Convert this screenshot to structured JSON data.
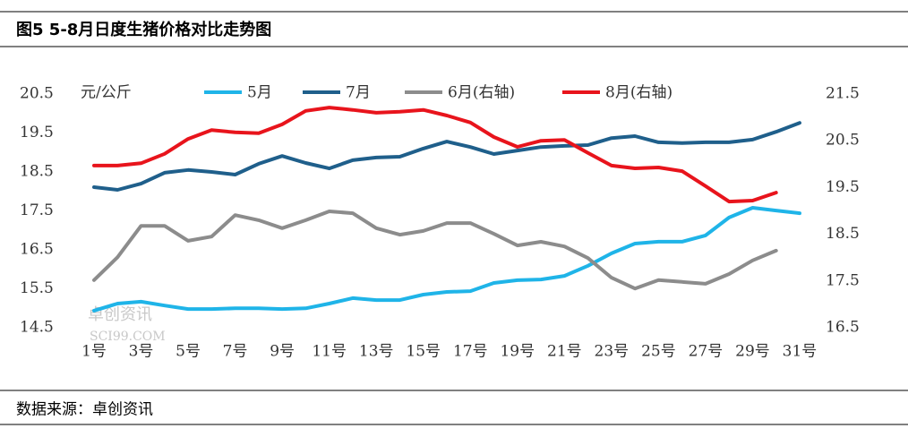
{
  "chart_data": {
    "type": "line",
    "title": "图5 5-8月日度生猪价格对比走势图",
    "y_axis_label": "元/公斤",
    "source": "数据来源：卓创资讯",
    "watermark": "卓创资讯",
    "watermark_sub": "SCI99.COM",
    "categories": [
      "1号",
      null,
      "3号",
      null,
      "5号",
      null,
      "7号",
      null,
      "9号",
      null,
      "11号",
      null,
      "13号",
      null,
      "15号",
      null,
      "17号",
      null,
      "19号",
      null,
      "21号",
      null,
      "23号",
      null,
      "25号",
      null,
      "27号",
      null,
      "29号",
      null,
      "31号"
    ],
    "ylim": [
      14.5,
      20.5
    ],
    "yticks": [
      14.5,
      15.5,
      16.5,
      17.5,
      18.5,
      19.5,
      20.5
    ],
    "y2lim": [
      16.5,
      21.5
    ],
    "y2ticks": [
      16.5,
      17.5,
      18.5,
      19.5,
      20.5,
      21.5
    ],
    "grid": false,
    "series": [
      {
        "name": "5月",
        "color": "#1fb4e8",
        "values": [
          14.94,
          15.12,
          15.17,
          15.07,
          14.98,
          14.98,
          15.0,
          15.0,
          14.98,
          15.0,
          15.12,
          15.26,
          15.21,
          15.21,
          15.35,
          15.42,
          15.44,
          15.65,
          15.72,
          15.74,
          15.83,
          16.09,
          16.41,
          16.66,
          16.71,
          16.71,
          16.87,
          17.33,
          17.58,
          17.51,
          17.44
        ]
      },
      {
        "name": "7月",
        "color": "#1f5f8b",
        "values": [
          18.11,
          18.04,
          18.2,
          18.48,
          18.55,
          18.5,
          18.43,
          18.71,
          18.91,
          18.73,
          18.59,
          18.8,
          18.87,
          18.89,
          19.1,
          19.28,
          19.14,
          18.96,
          19.05,
          19.14,
          19.17,
          19.19,
          19.37,
          19.42,
          19.26,
          19.24,
          19.26,
          19.26,
          19.33,
          19.53,
          19.76
        ]
      },
      {
        "name": "6月(右轴)",
        "color": "#8c8c8c",
        "axis": "y2",
        "values": [
          17.52,
          18.01,
          18.68,
          18.68,
          18.36,
          18.45,
          18.91,
          18.8,
          18.63,
          18.8,
          18.99,
          18.95,
          18.63,
          18.49,
          18.57,
          18.74,
          18.74,
          18.51,
          18.26,
          18.34,
          18.24,
          17.99,
          17.57,
          17.34,
          17.52,
          17.48,
          17.44,
          17.65,
          17.94,
          18.15,
          null
        ]
      },
      {
        "name": "8月(右轴)",
        "color": "#e8141c",
        "axis": "y2",
        "values": [
          19.97,
          19.97,
          20.02,
          20.22,
          20.54,
          20.73,
          20.68,
          20.66,
          20.85,
          21.14,
          21.21,
          21.16,
          21.1,
          21.12,
          21.16,
          21.04,
          20.89,
          20.58,
          20.37,
          20.5,
          20.52,
          20.24,
          19.97,
          19.91,
          19.93,
          19.85,
          19.53,
          19.2,
          19.22,
          19.39,
          null
        ]
      }
    ]
  }
}
